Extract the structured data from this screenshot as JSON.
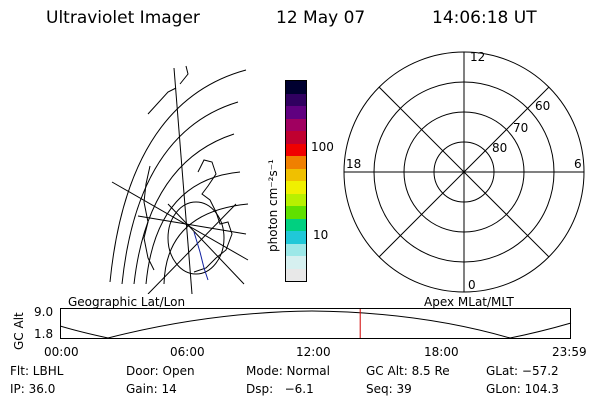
{
  "header": {
    "title": "Ultraviolet Imager",
    "date": "12 May 07",
    "time": "14:06:18 UT"
  },
  "colorbar": {
    "unit_label": "photon cm⁻²s⁻¹",
    "ticks": [
      {
        "label": "100",
        "value": 100
      },
      {
        "label": "10",
        "value": 10
      }
    ],
    "colors": [
      "#e8e8e8",
      "#d6f0f0",
      "#9ce8e8",
      "#20c8d8",
      "#00d080",
      "#60e000",
      "#b8f000",
      "#f0f000",
      "#f0c000",
      "#f08000",
      "#f00000",
      "#c00030",
      "#a00060",
      "#600080",
      "#300060",
      "#000030"
    ]
  },
  "left_map": {
    "label": "Geographic Lat/Lon"
  },
  "polar_plot": {
    "label": "Apex MLat/MLT",
    "mlt_labels": [
      {
        "label": "12",
        "pos": "top"
      },
      {
        "label": "18",
        "pos": "left"
      },
      {
        "label": "6",
        "pos": "right"
      },
      {
        "label": "0",
        "pos": "bottom"
      }
    ],
    "lat_labels": [
      "60",
      "70",
      "80"
    ]
  },
  "orbit_plot": {
    "ylabel": "GC Alt",
    "ytick_top": "9.0",
    "ytick_bottom": "1.8",
    "xticks": [
      "00:00",
      "06:00",
      "12:00",
      "18:00",
      "23:59"
    ],
    "marker_time": "14:06",
    "marker_color": "#d00000"
  },
  "info": {
    "filter": "Flt: LBHL",
    "door": "Door: Open",
    "mode": "Mode: Normal",
    "gc_alt": "GC Alt: 8.5 Re",
    "glat": "GLat: −57.2",
    "ip": "IP: 36.0",
    "gain": "Gain: 14",
    "dsp": "Dsp:   −6.1",
    "seq": "Seq: 39",
    "glon": "GLon: 104.3"
  }
}
